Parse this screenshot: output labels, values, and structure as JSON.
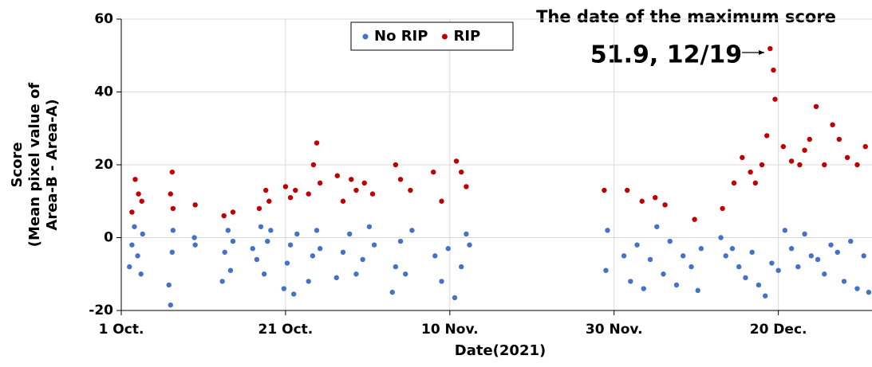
{
  "chart_data": {
    "type": "scatter",
    "annotations": [
      "The date of the maximum score",
      "51.9, 12/19"
    ],
    "x_label": "Date(2021)",
    "y_label": [
      "Score",
      "(Mean pixel value of",
      "Area-B - Area-A)"
    ],
    "xlim": [
      0,
      91.4
    ],
    "ylim": [
      -20,
      60
    ],
    "xticks": [
      {
        "value": 0,
        "label": "1 Oct."
      },
      {
        "value": 20,
        "label": "21 Oct."
      },
      {
        "value": 40,
        "label": "10 Nov."
      },
      {
        "value": 60,
        "label": "30 Nov."
      },
      {
        "value": 80,
        "label": "20 Dec."
      }
    ],
    "yticks": [
      -20,
      0,
      20,
      40,
      60
    ],
    "grid": true,
    "legend": "top",
    "series": [
      {
        "name": "No RIP",
        "color": "#4472c4",
        "x": [
          1.0,
          1.3,
          1.6,
          2.0,
          2.4,
          2.6,
          5.8,
          6.0,
          6.2,
          6.3,
          8.9,
          9.0,
          12.3,
          12.6,
          13.0,
          13.3,
          13.6,
          16.0,
          16.5,
          17.0,
          17.4,
          17.8,
          18.2,
          19.8,
          20.2,
          20.6,
          21.0,
          21.4,
          22.8,
          23.3,
          23.8,
          24.2,
          26.2,
          27.0,
          27.8,
          28.6,
          29.4,
          30.2,
          30.8,
          33.0,
          33.4,
          34.0,
          34.6,
          35.4,
          38.2,
          39.0,
          39.8,
          40.6,
          41.4,
          42.0,
          42.4,
          59.0,
          59.2,
          61.2,
          62.0,
          62.8,
          63.6,
          64.4,
          65.2,
          66.0,
          66.8,
          67.6,
          68.4,
          69.4,
          70.2,
          70.6,
          73.0,
          73.6,
          74.4,
          75.2,
          76.0,
          76.8,
          77.6,
          78.4,
          79.2,
          80.0,
          80.8,
          81.6,
          82.4,
          83.2,
          84.0,
          84.8,
          85.6,
          86.4,
          87.2,
          88.0,
          88.8,
          89.6,
          90.4,
          91.0
        ],
        "values": [
          -8,
          -2,
          3,
          -5,
          -10,
          1,
          -13,
          -18.5,
          -4,
          2,
          0,
          -2,
          -12,
          -4,
          2,
          -9,
          -1,
          -3,
          -6,
          3,
          -10,
          -1,
          2,
          -14,
          -7,
          -2,
          -15.5,
          1,
          -12,
          -5,
          2,
          -3,
          -11,
          -4,
          1,
          -10,
          -6,
          3,
          -2,
          -15,
          -8,
          -1,
          -10,
          2,
          -5,
          -12,
          -3,
          -16.5,
          -8,
          1,
          -2,
          -9,
          2,
          -5,
          -12,
          -2,
          -14,
          -6,
          3,
          -10,
          -1,
          -13,
          -5,
          -8,
          -14.5,
          -3,
          0,
          -5,
          -3,
          -8,
          -11,
          -4,
          -13,
          -16,
          -7,
          -9,
          2,
          -3,
          -8,
          1,
          -5,
          -6,
          -10,
          -2,
          -4,
          -12,
          -1,
          -14,
          -5,
          -15
        ]
      },
      {
        "name": "RIP",
        "color": "#c00000",
        "x": [
          1.3,
          1.7,
          2.1,
          2.5,
          6.0,
          6.2,
          6.3,
          9.0,
          12.5,
          13.6,
          16.8,
          17.6,
          18.0,
          20.0,
          20.6,
          21.2,
          22.8,
          23.4,
          23.8,
          24.2,
          26.3,
          27.0,
          28.0,
          28.6,
          29.6,
          30.6,
          33.4,
          34.0,
          35.2,
          38.0,
          39.0,
          40.8,
          41.4,
          42.0,
          58.8,
          61.6,
          63.4,
          65.0,
          66.2,
          69.8,
          73.2,
          74.6,
          75.6,
          76.6,
          77.2,
          78.0,
          78.6,
          79.0,
          79.4,
          79.6,
          80.6,
          81.6,
          82.6,
          83.2,
          83.8,
          84.6,
          85.6,
          86.6,
          87.4,
          88.4,
          89.6,
          90.6
        ],
        "values": [
          7,
          16,
          12,
          10,
          12,
          18,
          8,
          9,
          6,
          7,
          8,
          13,
          10,
          14,
          11,
          13,
          12,
          20,
          26,
          15,
          17,
          10,
          16,
          13,
          15,
          12,
          20,
          16,
          13,
          18,
          10,
          21,
          18,
          14,
          13,
          13,
          10,
          11,
          9,
          5,
          8,
          15,
          22,
          18,
          15,
          20,
          28,
          51.9,
          46,
          38,
          25,
          21,
          20,
          24,
          27,
          36,
          20,
          31,
          27,
          22,
          20,
          25
        ]
      }
    ]
  }
}
